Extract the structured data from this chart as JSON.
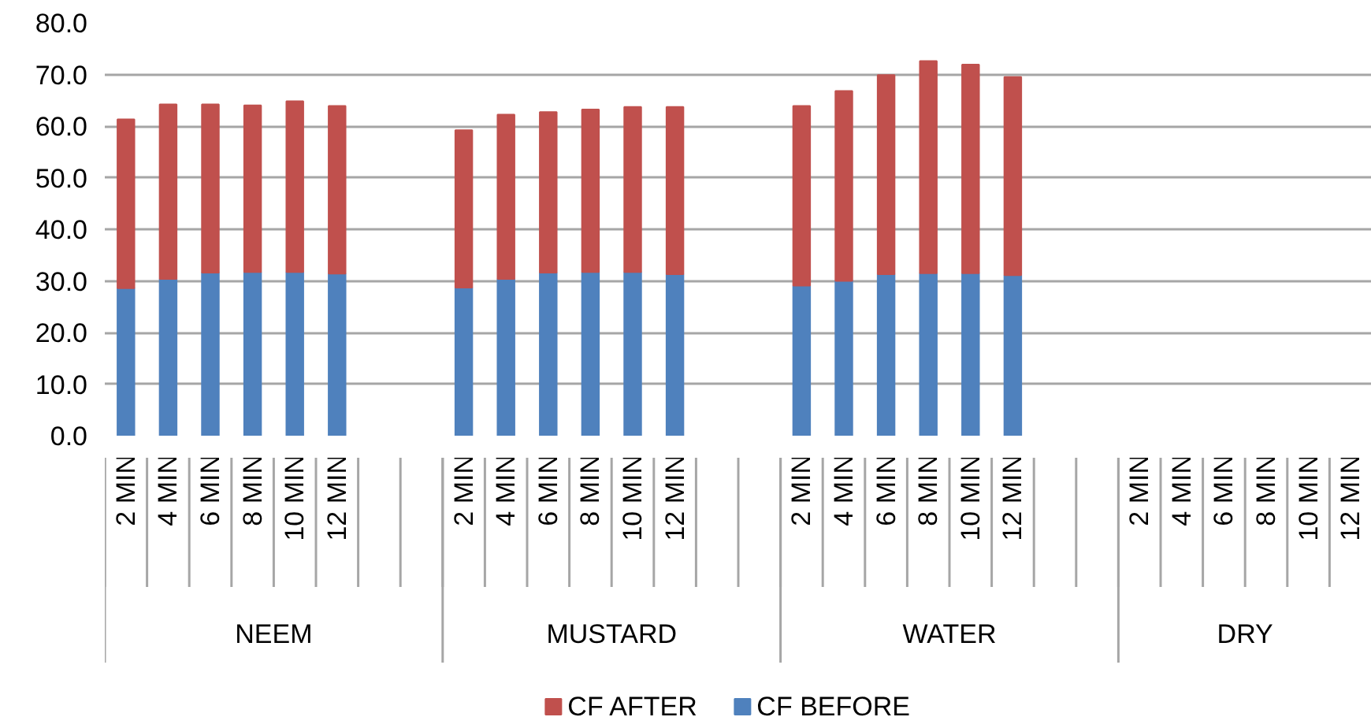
{
  "chart_data": {
    "type": "bar",
    "stacked": true,
    "categories": [
      "2 MIN",
      "4 MIN",
      "6 MIN",
      "8 MIN",
      "10 MIN",
      "12 MIN",
      null,
      null,
      "2 MIN",
      "4 MIN",
      "6 MIN",
      "8 MIN",
      "10 MIN",
      "12 MIN",
      null,
      null,
      "2 MIN",
      "4 MIN",
      "6 MIN",
      "8 MIN",
      "10 MIN",
      "12 MIN",
      null,
      null,
      "2 MIN",
      "4 MIN",
      "6 MIN",
      "8 MIN",
      "10 MIN",
      "12 MIN"
    ],
    "series": [
      {
        "name": "CF BEFORE",
        "color": "#4f81bd",
        "values": [
          28.6,
          30.4,
          31.6,
          31.7,
          31.7,
          31.4,
          null,
          null,
          28.7,
          30.4,
          31.6,
          31.7,
          31.7,
          31.3,
          null,
          null,
          29.1,
          30.0,
          31.3,
          31.5,
          31.5,
          31.1,
          null,
          null,
          null,
          null,
          null,
          null,
          null,
          null
        ]
      },
      {
        "name": "CF AFTER",
        "color": "#c0504d",
        "values": [
          32.7,
          33.8,
          32.6,
          32.3,
          33.1,
          32.5,
          null,
          null,
          30.5,
          31.8,
          31.1,
          31.5,
          32.0,
          32.4,
          null,
          null,
          34.8,
          36.8,
          38.6,
          41.1,
          40.4,
          38.4,
          null,
          null,
          null,
          null,
          null,
          null,
          null,
          null
        ]
      }
    ],
    "annotations": [
      "NEEM",
      "MUSTARD",
      "WATER",
      "DRY"
    ],
    "ylim": [
      0,
      80
    ],
    "yticks": [
      {
        "value": 0,
        "label": "0.0"
      },
      {
        "value": 10,
        "label": "10.0"
      },
      {
        "value": 20,
        "label": "20.0"
      },
      {
        "value": 30,
        "label": "30.0"
      },
      {
        "value": 40,
        "label": "40.0"
      },
      {
        "value": 50,
        "label": "50.0"
      },
      {
        "value": 60,
        "label": "60.0"
      },
      {
        "value": 70,
        "label": "70.0"
      },
      {
        "value": 80,
        "label": "80.0"
      }
    ],
    "grid": "y",
    "legend": "bottom"
  }
}
